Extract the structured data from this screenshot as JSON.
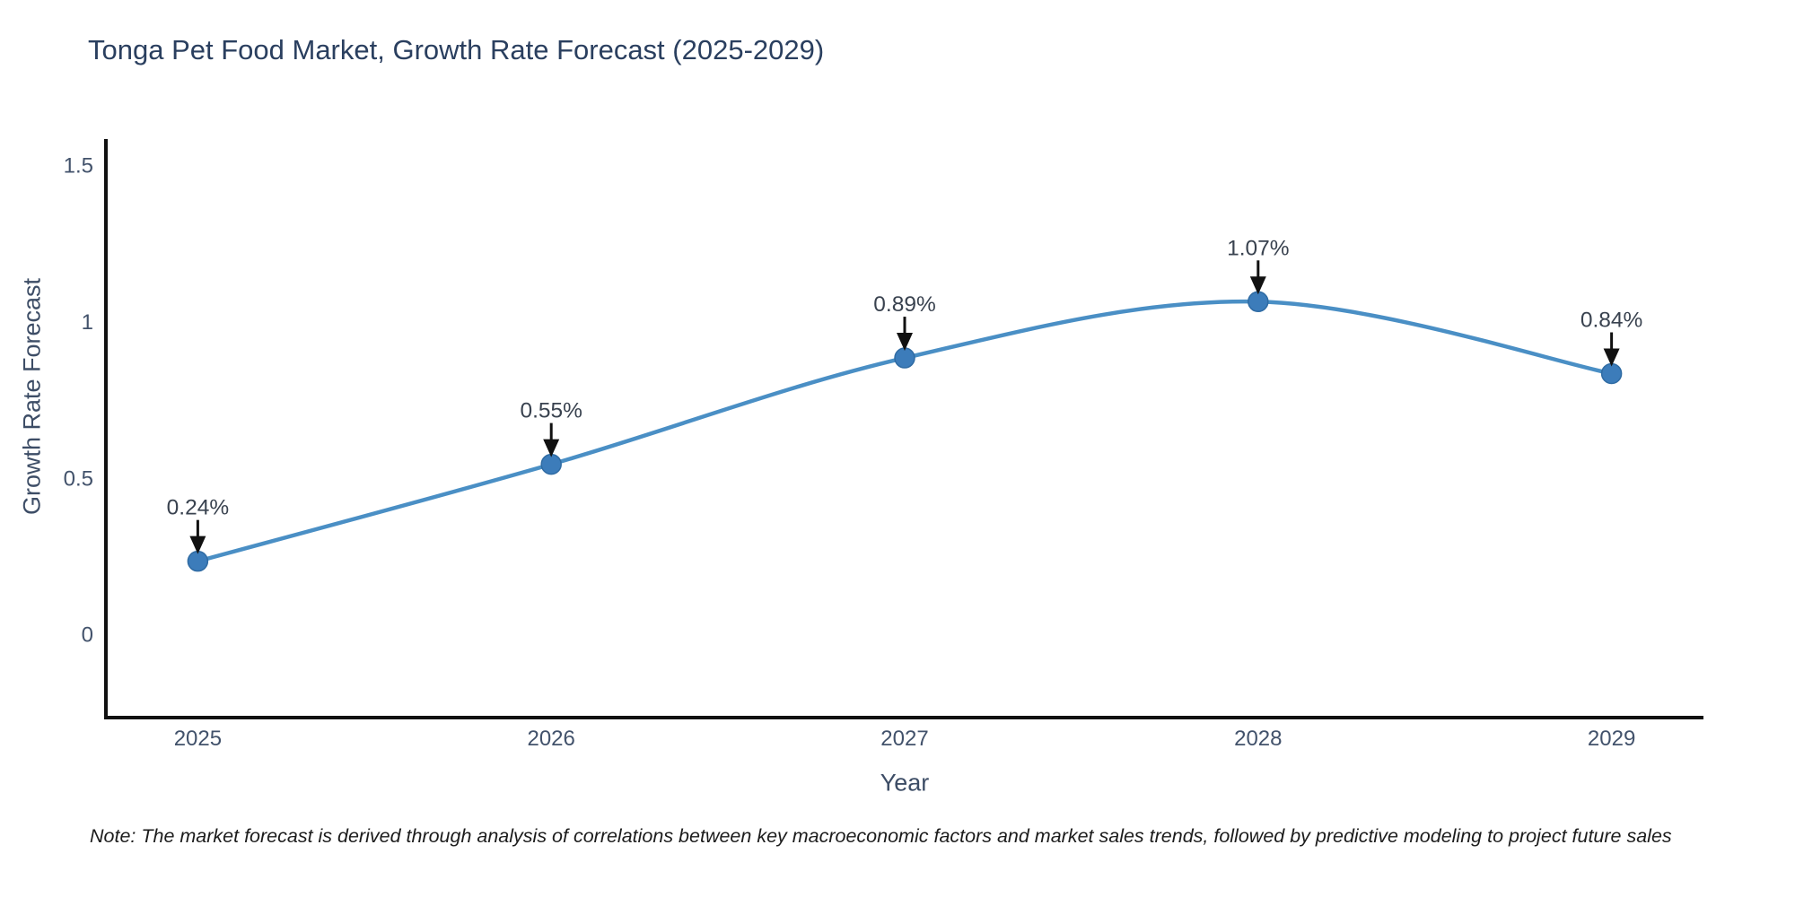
{
  "page": {
    "background": "#ffffff"
  },
  "chart_data": {
    "type": "line",
    "title": "Tonga Pet Food Market, Growth Rate Forecast (2025-2029)",
    "xlabel": "Year",
    "ylabel": "Growth Rate Forecast",
    "categories": [
      "2025",
      "2026",
      "2027",
      "2028",
      "2029"
    ],
    "x": [
      2025,
      2026,
      2027,
      2028,
      2029
    ],
    "values": [
      0.24,
      0.55,
      0.89,
      1.07,
      0.84
    ],
    "point_labels": [
      "0.24%",
      "0.55%",
      "0.89%",
      "1.07%",
      "0.84%"
    ],
    "yticks": {
      "values": [
        0,
        0.5,
        1,
        1.5
      ],
      "labels": [
        "0",
        "0.5",
        "1",
        "1.5"
      ]
    },
    "xlim": [
      2024.74,
      2029.26
    ],
    "ylim": [
      -0.26,
      1.59
    ],
    "grid": false,
    "legend": false,
    "line_shape": "spline",
    "annotations_arrow": "down-to-point",
    "colors": {
      "line": "#4a8fc5",
      "marker": "#3c7cba",
      "marker_edge": "#2f6ba3",
      "axis": "#111111",
      "title_text": "#2a3f5f",
      "tick_text": "#42526b",
      "annotation_text": "#39424f",
      "arrow": "#111111"
    }
  },
  "note": {
    "text": "Note: The market forecast is derived through analysis of correlations between key macroeconomic factors and market sales trends, followed by predictive modeling to project future sales"
  }
}
